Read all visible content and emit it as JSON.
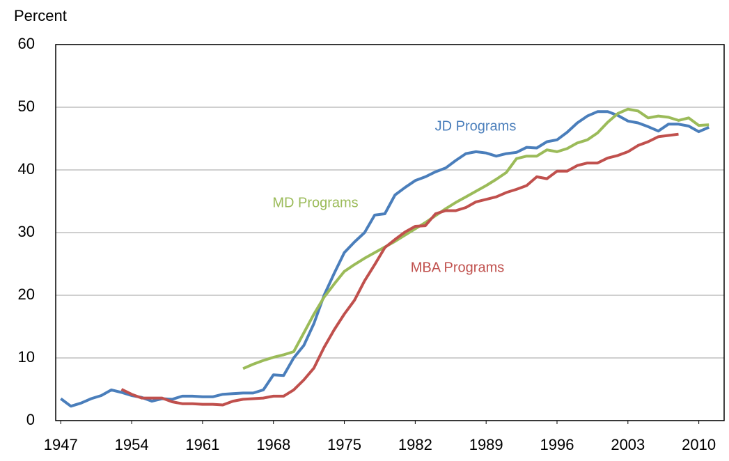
{
  "chart_data": {
    "type": "line",
    "ylabel": "Percent",
    "x": [
      1947,
      1948,
      1949,
      1950,
      1951,
      1952,
      1953,
      1954,
      1955,
      1956,
      1957,
      1958,
      1959,
      1960,
      1961,
      1962,
      1963,
      1964,
      1965,
      1966,
      1967,
      1968,
      1969,
      1970,
      1971,
      1972,
      1973,
      1974,
      1975,
      1976,
      1977,
      1978,
      1979,
      1980,
      1981,
      1982,
      1983,
      1984,
      1985,
      1986,
      1987,
      1988,
      1989,
      1990,
      1991,
      1992,
      1993,
      1994,
      1995,
      1996,
      1997,
      1998,
      1999,
      2000,
      2001,
      2002,
      2003,
      2004,
      2005,
      2006,
      2007,
      2008,
      2009,
      2010,
      2011
    ],
    "series": [
      {
        "name": "JD Programs",
        "color": "#4a7ebb",
        "values": [
          3.5,
          2.3,
          2.8,
          3.5,
          4.0,
          4.9,
          4.5,
          4.0,
          3.7,
          3.1,
          3.5,
          3.4,
          3.9,
          3.9,
          3.8,
          3.8,
          4.2,
          4.3,
          4.4,
          4.4,
          4.9,
          7.3,
          7.2,
          10.0,
          12.0,
          15.5,
          20.0,
          23.5,
          26.8,
          28.5,
          30.0,
          32.8,
          33.0,
          36.0,
          37.2,
          38.3,
          38.9,
          39.7,
          40.3,
          41.5,
          42.6,
          42.9,
          42.7,
          42.2,
          42.6,
          42.8,
          43.6,
          43.5,
          44.5,
          44.8,
          46.0,
          47.5,
          48.6,
          49.3,
          49.3,
          48.7,
          47.8,
          47.5,
          46.9,
          46.2,
          47.3,
          47.3,
          47.0,
          46.1,
          46.8
        ]
      },
      {
        "name": "MD Programs",
        "color": "#9bbb59",
        "values": [
          null,
          null,
          null,
          null,
          null,
          null,
          null,
          null,
          null,
          null,
          null,
          null,
          null,
          null,
          null,
          null,
          null,
          null,
          8.3,
          9.0,
          9.6,
          10.1,
          10.5,
          11.0,
          14.0,
          17.0,
          19.7,
          21.8,
          23.8,
          24.9,
          25.9,
          26.8,
          27.7,
          28.6,
          29.6,
          30.6,
          31.6,
          32.7,
          33.8,
          34.8,
          35.7,
          36.6,
          37.5,
          38.5,
          39.6,
          41.8,
          42.2,
          42.2,
          43.2,
          42.9,
          43.4,
          44.3,
          44.8,
          45.9,
          47.6,
          49.0,
          49.7,
          49.4,
          48.3,
          48.6,
          48.4,
          47.9,
          48.3,
          47.1,
          47.2
        ]
      },
      {
        "name": "MBA Programs",
        "color": "#c0504d",
        "values": [
          null,
          null,
          null,
          null,
          null,
          null,
          5.0,
          4.2,
          3.6,
          3.6,
          3.6,
          3.0,
          2.7,
          2.7,
          2.6,
          2.6,
          2.5,
          3.1,
          3.4,
          3.5,
          3.6,
          3.9,
          3.9,
          4.9,
          6.5,
          8.4,
          11.7,
          14.5,
          17.0,
          19.2,
          22.3,
          24.9,
          27.6,
          28.9,
          30.1,
          31.0,
          31.1,
          33.0,
          33.5,
          33.5,
          34.0,
          34.9,
          35.3,
          35.7,
          36.4,
          36.9,
          37.5,
          38.9,
          38.6,
          39.8,
          39.8,
          40.7,
          41.1,
          41.1,
          41.9,
          42.3,
          42.9,
          43.9,
          44.5,
          45.3,
          45.5,
          45.7,
          null,
          null,
          null
        ]
      }
    ],
    "xlim": [
      1946.5,
      2012.5
    ],
    "xticks": [
      1947,
      1954,
      1961,
      1968,
      1975,
      1982,
      1989,
      1996,
      2003,
      2010
    ],
    "ylim": [
      0,
      60
    ],
    "yticks": [
      0,
      10,
      20,
      30,
      40,
      50,
      60
    ],
    "grid": true
  }
}
